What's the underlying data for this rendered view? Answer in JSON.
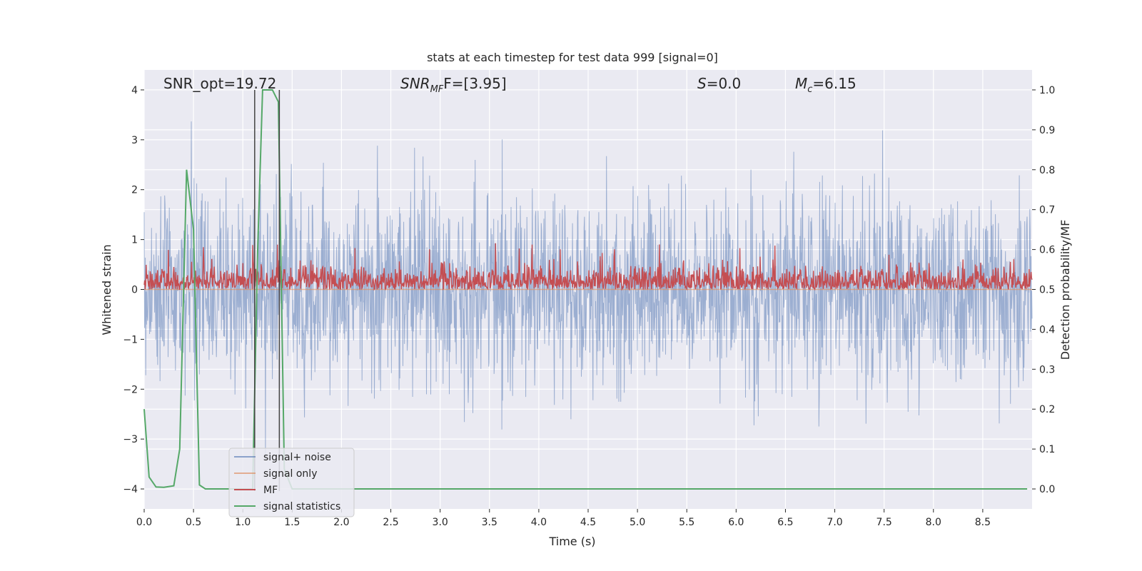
{
  "chart_data": {
    "type": "line",
    "title": "stats at each timestep for test data 999 [signal=0]",
    "xlabel": "Time (s)",
    "ylabel_left": "Whitened strain",
    "ylabel_right": "Detection probability/MF",
    "xlim": [
      0.0,
      9.0
    ],
    "ylim_left": [
      -4.4,
      4.4
    ],
    "ylim_right": [
      -0.05,
      1.05
    ],
    "grid": true,
    "legend_position": "lower-left",
    "x_ticks": [
      0.0,
      0.5,
      1.0,
      1.5,
      2.0,
      2.5,
      3.0,
      3.5,
      4.0,
      4.5,
      5.0,
      5.5,
      6.0,
      6.5,
      7.0,
      7.5,
      8.0,
      8.5
    ],
    "x_tick_labels": [
      "0.0",
      "0.5",
      "1.0",
      "1.5",
      "2.0",
      "2.5",
      "3.0",
      "3.5",
      "4.0",
      "4.5",
      "5.0",
      "5.5",
      "6.0",
      "6.5",
      "7.0",
      "7.5",
      "8.0",
      "8.5"
    ],
    "y_left_ticks": [
      -4,
      -3,
      -2,
      -1,
      0,
      1,
      2,
      3,
      4
    ],
    "y_left_tick_labels": [
      "−4",
      "−3",
      "−2",
      "−1",
      "0",
      "1",
      "2",
      "3",
      "4"
    ],
    "y_right_ticks": [
      0.0,
      0.1,
      0.2,
      0.3,
      0.4,
      0.5,
      0.6,
      0.7,
      0.8,
      0.9,
      1.0
    ],
    "y_right_tick_labels": [
      "0.0",
      "0.1",
      "0.2",
      "0.3",
      "0.4",
      "0.5",
      "0.6",
      "0.7",
      "0.8",
      "0.9",
      "1.0"
    ],
    "annotations": {
      "snr_opt": "SNR_opt=19.72",
      "snr_mf_base": "SNR",
      "snr_mf_sub": "MF",
      "snr_mf_value": "F=[3.95]",
      "s_base": "S",
      "s_value": "=0.0",
      "mc_base": "M",
      "mc_sub": "c",
      "mc_value": "=6.15"
    },
    "vlines_x": [
      1.12,
      1.37
    ],
    "series": [
      {
        "name": "signal+ noise",
        "axis": "left",
        "color": "#4c72b0",
        "kind": "noise",
        "envelope_typical": 1.6,
        "envelope_max": 4.0,
        "envelope_min": -3.4
      },
      {
        "name": "signal only",
        "axis": "left",
        "color": "#dd8452",
        "kind": "flat",
        "value": 0
      },
      {
        "name": "MF",
        "axis": "right",
        "color": "#c44e52",
        "kind": "noise",
        "baseline": 0.5,
        "typical_max": 0.58,
        "peak_max": 0.62
      },
      {
        "name": "signal statistics",
        "axis": "right",
        "color": "#55a868",
        "kind": "line",
        "x": [
          0.0,
          0.05,
          0.12,
          0.2,
          0.3,
          0.36,
          0.43,
          0.5,
          0.56,
          0.62,
          0.7,
          0.9,
          1.0,
          1.05,
          1.1,
          1.15,
          1.2,
          1.3,
          1.36,
          1.42,
          1.5,
          2.0,
          3.0,
          4.0,
          5.0,
          6.0,
          7.0,
          8.0,
          8.95
        ],
        "y": [
          0.2,
          0.03,
          0.005,
          0.004,
          0.008,
          0.1,
          0.8,
          0.65,
          0.01,
          0.0,
          0.0,
          0.0,
          0.0,
          0.0,
          0.0,
          0.6,
          1.0,
          1.0,
          0.97,
          0.05,
          0.0,
          0.0,
          0.0,
          0.0,
          0.0,
          0.0,
          0.0,
          0.0,
          0.0
        ]
      }
    ]
  }
}
